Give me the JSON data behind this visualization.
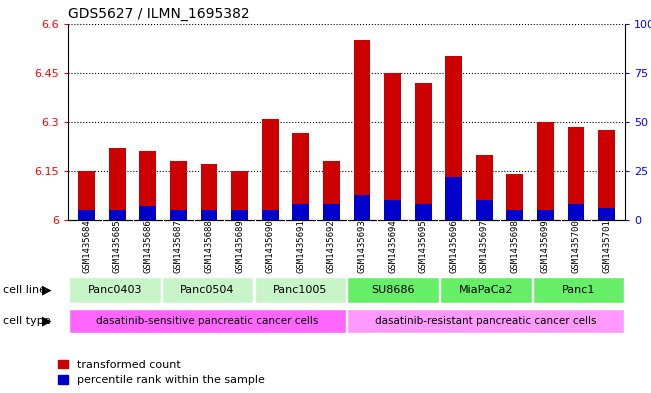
{
  "title": "GDS5627 / ILMN_1695382",
  "samples": [
    "GSM1435684",
    "GSM1435685",
    "GSM1435686",
    "GSM1435687",
    "GSM1435688",
    "GSM1435689",
    "GSM1435690",
    "GSM1435691",
    "GSM1435692",
    "GSM1435693",
    "GSM1435694",
    "GSM1435695",
    "GSM1435696",
    "GSM1435697",
    "GSM1435698",
    "GSM1435699",
    "GSM1435700",
    "GSM1435701"
  ],
  "red_values": [
    6.15,
    6.22,
    6.21,
    6.18,
    6.17,
    6.15,
    6.31,
    6.265,
    6.18,
    6.55,
    6.45,
    6.42,
    6.5,
    6.2,
    6.14,
    6.3,
    6.285,
    6.275
  ],
  "blue_percentiles": [
    5,
    5,
    7,
    5,
    5,
    5,
    5,
    8,
    8,
    13,
    10,
    8,
    22,
    10,
    5,
    5,
    8,
    6
  ],
  "base": 6.0,
  "ylim_left": [
    6.0,
    6.6
  ],
  "yticks_left": [
    6.0,
    6.15,
    6.3,
    6.45,
    6.6
  ],
  "ytick_labels_left": [
    "6",
    "6.15",
    "6.3",
    "6.45",
    "6.6"
  ],
  "ylim_right": [
    0,
    100
  ],
  "yticks_right": [
    0,
    25,
    50,
    75,
    100
  ],
  "ytick_labels_right": [
    "0",
    "25",
    "50",
    "75",
    "100%"
  ],
  "cell_line_groups": [
    {
      "label": "Panc0403",
      "start": 0,
      "end": 3,
      "color": "#c8f5c8"
    },
    {
      "label": "Panc0504",
      "start": 3,
      "end": 6,
      "color": "#c8f5c8"
    },
    {
      "label": "Panc1005",
      "start": 6,
      "end": 9,
      "color": "#c8f5c8"
    },
    {
      "label": "SU8686",
      "start": 9,
      "end": 12,
      "color": "#66ee66"
    },
    {
      "label": "MiaPaCa2",
      "start": 12,
      "end": 15,
      "color": "#66ee66"
    },
    {
      "label": "Panc1",
      "start": 15,
      "end": 18,
      "color": "#66ee66"
    }
  ],
  "cell_type_groups": [
    {
      "label": "dasatinib-sensitive pancreatic cancer cells",
      "start": 0,
      "end": 9,
      "color": "#ff66ff"
    },
    {
      "label": "dasatinib-resistant pancreatic cancer cells",
      "start": 9,
      "end": 18,
      "color": "#ff99ff"
    }
  ],
  "cell_line_label": "cell line",
  "cell_type_label": "cell type",
  "legend_red": "transformed count",
  "legend_blue": "percentile rank within the sample",
  "bar_width": 0.55,
  "red_color": "#cc0000",
  "blue_color": "#0000cc",
  "xaxis_bg": "#c8c8c8",
  "title_fontsize": 10
}
